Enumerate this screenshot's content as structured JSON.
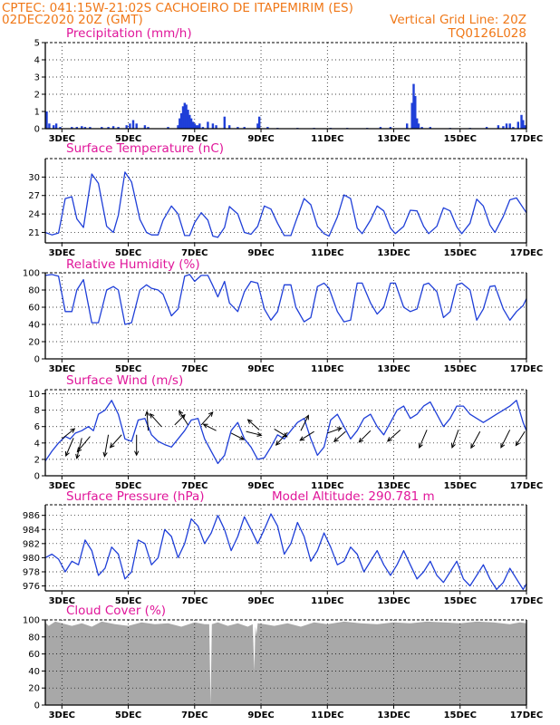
{
  "header": {
    "line1_left": "CPTEC:   041:15W-21:02S   CACHOEIRO DE ITAPEMIRIM (ES)",
    "line2_left": "02DEC2020 20Z (GMT)",
    "line2_right": "Vertical Grid Line: 20Z",
    "line3_right": "TQ0126L028"
  },
  "colors": {
    "header": "#f07818",
    "panel_title": "#e0169a",
    "series": "#1f3fd8",
    "cloud": "#a8a8a8",
    "wind_arrow": "#000000"
  },
  "x_axis": {
    "tick_labels": [
      "3DEC",
      "5DEC",
      "7DEC",
      "9DEC",
      "11DEC",
      "13DEC",
      "15DEC",
      "17DEC"
    ],
    "tick_days": [
      3,
      5,
      7,
      9,
      11,
      13,
      15,
      17
    ],
    "start_day": 2.5,
    "end_day": 17.0
  },
  "chart_data": [
    {
      "type": "bar",
      "title": "Precipitation (mm/h)",
      "ylim": [
        0,
        5
      ],
      "yticks": [
        0,
        1,
        2,
        3,
        4,
        5
      ],
      "x": [
        2.54,
        2.62,
        2.75,
        2.83,
        2.95,
        3.3,
        3.45,
        3.6,
        3.7,
        3.85,
        4.2,
        4.4,
        4.55,
        4.7,
        4.95,
        5.05,
        5.15,
        5.25,
        5.5,
        5.6,
        6.2,
        6.5,
        6.55,
        6.6,
        6.65,
        6.7,
        6.75,
        6.8,
        6.85,
        6.9,
        6.95,
        7.0,
        7.05,
        7.1,
        7.15,
        7.25,
        7.4,
        7.55,
        7.65,
        7.9,
        8.05,
        8.3,
        8.5,
        8.9,
        8.95,
        9.2,
        9.5,
        10.1,
        10.6,
        11.1,
        11.6,
        12.2,
        12.6,
        12.9,
        13.4,
        13.55,
        13.6,
        13.65,
        13.7,
        13.75,
        13.85,
        14.1,
        14.7,
        15.3,
        15.8,
        16.15,
        16.3,
        16.4,
        16.5,
        16.6,
        16.75,
        16.85,
        16.9,
        16.95
      ],
      "values": [
        1.0,
        0.3,
        0.2,
        0.3,
        0.1,
        0.1,
        0.1,
        0.15,
        0.1,
        0.1,
        0.1,
        0.1,
        0.15,
        0.1,
        0.2,
        0.3,
        0.5,
        0.3,
        0.2,
        0.1,
        0.1,
        0.2,
        0.6,
        0.9,
        1.3,
        1.5,
        1.4,
        1.1,
        0.8,
        0.6,
        0.4,
        0.3,
        0.2,
        0.2,
        0.3,
        0.1,
        0.4,
        0.3,
        0.2,
        0.7,
        0.2,
        0.1,
        0.1,
        0.3,
        0.7,
        0.1,
        0.05,
        0.05,
        0.05,
        0.05,
        0.05,
        0.05,
        0.1,
        0.1,
        0.3,
        1.5,
        2.6,
        1.9,
        0.6,
        0.3,
        0.1,
        0.1,
        0.05,
        0.05,
        0.1,
        0.2,
        0.15,
        0.3,
        0.3,
        0.1,
        0.4,
        0.8,
        0.5,
        0.2
      ]
    },
    {
      "type": "line",
      "title": "Surface Temperature (nC)",
      "ylim": [
        19.3,
        33
      ],
      "yticks": [
        21,
        24,
        27,
        30
      ],
      "x": [
        2.5,
        2.7,
        2.9,
        3.1,
        3.3,
        3.45,
        3.65,
        3.9,
        4.1,
        4.35,
        4.55,
        4.7,
        4.9,
        5.1,
        5.35,
        5.55,
        5.7,
        5.9,
        6.05,
        6.3,
        6.5,
        6.7,
        6.85,
        7.0,
        7.2,
        7.4,
        7.55,
        7.7,
        7.9,
        8.05,
        8.3,
        8.5,
        8.7,
        8.9,
        9.1,
        9.3,
        9.5,
        9.7,
        9.9,
        10.05,
        10.3,
        10.5,
        10.7,
        10.9,
        11.05,
        11.3,
        11.5,
        11.7,
        11.9,
        12.05,
        12.3,
        12.5,
        12.7,
        12.9,
        13.05,
        13.3,
        13.5,
        13.7,
        13.9,
        14.05,
        14.3,
        14.5,
        14.7,
        14.9,
        15.05,
        15.3,
        15.5,
        15.7,
        15.9,
        16.05,
        16.3,
        16.5,
        16.7,
        16.9,
        17.0
      ],
      "values": [
        21,
        20.6,
        20.9,
        26.5,
        26.8,
        23.2,
        21.8,
        30.5,
        29,
        22,
        21,
        23.8,
        30.8,
        29.2,
        23.1,
        21,
        20.6,
        20.6,
        23,
        25.3,
        24,
        20.5,
        20.5,
        22.6,
        24.2,
        23,
        20.4,
        20.2,
        21.8,
        25.2,
        24,
        21,
        20.7,
        22,
        25.3,
        24.8,
        22.5,
        20.5,
        20.5,
        22.8,
        26.5,
        25.5,
        22,
        20.8,
        20.4,
        23.5,
        27.1,
        26.5,
        21.7,
        20.8,
        23,
        25.3,
        24.5,
        21.7,
        20.8,
        22,
        24.6,
        24.5,
        22,
        20.8,
        22,
        25,
        24.5,
        21.9,
        20.8,
        22.5,
        26.4,
        25.3,
        22.2,
        21,
        23.6,
        26.3,
        26.6,
        25,
        24.2
      ]
    },
    {
      "type": "line",
      "title": "Relative Humidity (%)",
      "ylim": [
        0,
        100
      ],
      "yticks": [
        0,
        20,
        40,
        60,
        80,
        100
      ],
      "x": [
        2.5,
        2.7,
        2.9,
        3.1,
        3.3,
        3.45,
        3.65,
        3.9,
        4.1,
        4.35,
        4.55,
        4.7,
        4.9,
        5.1,
        5.35,
        5.55,
        5.7,
        5.9,
        6.05,
        6.3,
        6.5,
        6.7,
        6.85,
        7.0,
        7.2,
        7.4,
        7.55,
        7.7,
        7.9,
        8.05,
        8.3,
        8.5,
        8.7,
        8.9,
        9.1,
        9.3,
        9.5,
        9.7,
        9.9,
        10.05,
        10.3,
        10.5,
        10.7,
        10.9,
        11.05,
        11.3,
        11.5,
        11.7,
        11.9,
        12.05,
        12.3,
        12.5,
        12.7,
        12.9,
        13.05,
        13.3,
        13.5,
        13.7,
        13.9,
        14.05,
        14.3,
        14.5,
        14.7,
        14.9,
        15.05,
        15.3,
        15.5,
        15.7,
        15.9,
        16.05,
        16.3,
        16.5,
        16.7,
        16.9,
        17.0
      ],
      "values": [
        97,
        98,
        96,
        55,
        55,
        80,
        92,
        42,
        42,
        80,
        84,
        80,
        40,
        42,
        80,
        86,
        82,
        80,
        75,
        50,
        58,
        96,
        98,
        90,
        97,
        97,
        85,
        72,
        90,
        65,
        55,
        78,
        90,
        88,
        58,
        45,
        55,
        86,
        86,
        60,
        43,
        48,
        84,
        88,
        82,
        55,
        43,
        45,
        88,
        88,
        65,
        52,
        60,
        88,
        88,
        60,
        55,
        58,
        86,
        88,
        78,
        48,
        55,
        86,
        88,
        80,
        45,
        58,
        84,
        85,
        58,
        45,
        55,
        62,
        70
      ]
    },
    {
      "type": "line",
      "title": "Surface Wind (m/s)",
      "ylim": [
        0,
        10.5
      ],
      "yticks": [
        0,
        2,
        4,
        6,
        8,
        10
      ],
      "x": [
        2.5,
        2.7,
        2.9,
        3.1,
        3.25,
        3.4,
        3.6,
        3.8,
        3.95,
        4.1,
        4.3,
        4.5,
        4.7,
        4.9,
        5.1,
        5.3,
        5.5,
        5.7,
        5.9,
        6.1,
        6.3,
        6.5,
        6.7,
        6.9,
        7.1,
        7.3,
        7.5,
        7.7,
        7.9,
        8.1,
        8.3,
        8.5,
        8.7,
        8.9,
        9.1,
        9.3,
        9.5,
        9.7,
        9.9,
        10.1,
        10.3,
        10.5,
        10.7,
        10.9,
        11.1,
        11.3,
        11.5,
        11.7,
        11.9,
        12.1,
        12.3,
        12.5,
        12.7,
        12.9,
        13.1,
        13.3,
        13.5,
        13.7,
        13.9,
        14.1,
        14.3,
        14.5,
        14.7,
        14.9,
        15.1,
        15.3,
        15.5,
        15.7,
        15.9,
        16.1,
        16.3,
        16.5,
        16.7,
        16.9,
        17.0
      ],
      "values": [
        1.8,
        3.0,
        4.0,
        4.8,
        4.5,
        5.2,
        5.5,
        6.0,
        5.5,
        7.5,
        8.0,
        9.2,
        7.5,
        4.5,
        4.2,
        6.8,
        7.0,
        5.0,
        4.2,
        3.8,
        3.5,
        4.5,
        5.5,
        6.8,
        7.0,
        4.5,
        3.0,
        1.5,
        2.5,
        5.5,
        6.5,
        4.5,
        3.5,
        2.0,
        2.2,
        3.5,
        5.0,
        4.5,
        5.5,
        6.5,
        7.0,
        4.5,
        2.5,
        3.5,
        6.8,
        7.5,
        6.0,
        4.5,
        5.5,
        7.0,
        7.5,
        6.0,
        5.0,
        6.5,
        8.0,
        8.5,
        7.0,
        7.5,
        8.5,
        9.0,
        7.5,
        6.0,
        7.0,
        8.5,
        8.5,
        7.5,
        7.0,
        6.5,
        7.0,
        7.5,
        8.0,
        8.5,
        9.2,
        6.5,
        5.5
      ],
      "wind_arrows": [
        {
          "x": 3.0,
          "y": 4.5,
          "u": 0.5,
          "v": 0.4
        },
        {
          "x": 3.35,
          "y": 4.6,
          "u": -0.3,
          "v": -0.7
        },
        {
          "x": 3.6,
          "y": 4.6,
          "u": -0.2,
          "v": -0.8
        },
        {
          "x": 3.85,
          "y": 4.8,
          "u": -0.5,
          "v": -0.6
        },
        {
          "x": 4.4,
          "y": 5.0,
          "u": -0.15,
          "v": -0.85
        },
        {
          "x": 4.8,
          "y": 5.0,
          "u": -0.45,
          "v": -0.5
        },
        {
          "x": 5.25,
          "y": 5.0,
          "u": 0.0,
          "v": -0.8
        },
        {
          "x": 5.6,
          "y": 5.5,
          "u": -0.05,
          "v": 0.75
        },
        {
          "x": 6.0,
          "y": 6.0,
          "u": -0.45,
          "v": 0.5
        },
        {
          "x": 6.4,
          "y": 6.2,
          "u": 0.4,
          "v": 0.4
        },
        {
          "x": 6.8,
          "y": 6.2,
          "u": -0.35,
          "v": 0.55
        },
        {
          "x": 7.2,
          "y": 6.2,
          "u": 0.45,
          "v": 0.5
        },
        {
          "x": 7.65,
          "y": 5.5,
          "u": -0.5,
          "v": 0.25
        },
        {
          "x": 8.1,
          "y": 5.2,
          "u": 0.5,
          "v": -0.25
        },
        {
          "x": 8.55,
          "y": 5.4,
          "u": 0.6,
          "v": -0.15
        },
        {
          "x": 8.95,
          "y": 5.6,
          "u": -0.45,
          "v": 0.4
        },
        {
          "x": 9.4,
          "y": 5.7,
          "u": 0.5,
          "v": -0.3
        },
        {
          "x": 9.8,
          "y": 5.3,
          "u": -0.45,
          "v": -0.5
        },
        {
          "x": 10.2,
          "y": 5.5,
          "u": 0.3,
          "v": 0.6
        },
        {
          "x": 10.6,
          "y": 5.4,
          "u": -0.55,
          "v": -0.35
        },
        {
          "x": 11.0,
          "y": 5.2,
          "u": 0.55,
          "v": 0.2
        },
        {
          "x": 11.55,
          "y": 5.4,
          "u": -0.45,
          "v": -0.4
        },
        {
          "x": 12.3,
          "y": 5.5,
          "u": -0.45,
          "v": -0.45
        },
        {
          "x": 13.2,
          "y": 5.6,
          "u": -0.5,
          "v": -0.45
        },
        {
          "x": 14.0,
          "y": 5.6,
          "u": -0.3,
          "v": -0.7
        },
        {
          "x": 14.95,
          "y": 5.6,
          "u": -0.25,
          "v": -0.7
        },
        {
          "x": 15.6,
          "y": 5.4,
          "u": -0.35,
          "v": -0.65
        },
        {
          "x": 16.5,
          "y": 5.6,
          "u": -0.35,
          "v": -0.7
        },
        {
          "x": 16.95,
          "y": 5.4,
          "u": -0.35,
          "v": -0.55
        }
      ]
    },
    {
      "type": "line",
      "title": "Surface Pressure (hPa)",
      "annotation": "Model Altitude: 290.781 m",
      "ylim": [
        975.3,
        987.5
      ],
      "yticks": [
        976,
        978,
        980,
        982,
        984,
        986
      ],
      "x": [
        2.5,
        2.7,
        2.9,
        3.1,
        3.3,
        3.5,
        3.7,
        3.9,
        4.1,
        4.3,
        4.5,
        4.7,
        4.9,
        5.1,
        5.3,
        5.5,
        5.7,
        5.9,
        6.1,
        6.3,
        6.5,
        6.7,
        6.9,
        7.1,
        7.3,
        7.5,
        7.7,
        7.9,
        8.1,
        8.3,
        8.5,
        8.7,
        8.9,
        9.1,
        9.3,
        9.5,
        9.7,
        9.9,
        10.1,
        10.3,
        10.5,
        10.7,
        10.9,
        11.1,
        11.3,
        11.5,
        11.7,
        11.9,
        12.1,
        12.3,
        12.5,
        12.7,
        12.9,
        13.1,
        13.3,
        13.5,
        13.7,
        13.9,
        14.1,
        14.3,
        14.5,
        14.7,
        14.9,
        15.1,
        15.3,
        15.5,
        15.7,
        15.9,
        16.1,
        16.3,
        16.5,
        16.7,
        16.9,
        17.0
      ],
      "values": [
        980,
        980.5,
        979.8,
        978,
        979.5,
        979,
        982.5,
        981,
        977.5,
        978.5,
        981.5,
        980.5,
        977,
        978,
        982.5,
        982,
        979,
        980,
        984,
        983,
        980,
        982,
        985.5,
        984.5,
        982,
        983.5,
        986,
        984,
        981,
        983,
        985.8,
        984,
        982,
        984,
        986.2,
        984.5,
        980.5,
        982,
        985,
        983,
        979.5,
        981,
        983.5,
        981.5,
        979,
        979.5,
        981.5,
        980.5,
        978,
        979.5,
        981,
        979,
        977.5,
        979,
        981,
        979,
        977,
        978,
        979.5,
        977.5,
        976.5,
        978,
        979.5,
        977,
        976,
        977.5,
        979,
        977,
        975.5,
        976.5,
        978.5,
        977,
        975.5,
        976.3
      ]
    },
    {
      "type": "area",
      "title": "Cloud Cover (%)",
      "ylim": [
        0,
        100
      ],
      "yticks": [
        0,
        20,
        40,
        60,
        80,
        100
      ],
      "x": [
        2.5,
        2.6,
        2.8,
        3.0,
        3.3,
        3.6,
        3.9,
        4.2,
        4.6,
        5.0,
        5.4,
        5.8,
        6.2,
        6.6,
        7.0,
        7.3,
        7.44,
        7.48,
        7.52,
        7.7,
        8.0,
        8.3,
        8.6,
        8.75,
        8.78,
        8.8,
        8.83,
        8.86,
        8.9,
        9.1,
        9.4,
        9.8,
        10.2,
        10.6,
        11.0,
        11.5,
        12.0,
        12.5,
        13.0,
        13.5,
        14.0,
        14.5,
        15.0,
        15.5,
        16.0,
        16.5,
        16.8,
        17.0
      ],
      "values": [
        97,
        93,
        98,
        96,
        93,
        96,
        92,
        98,
        95,
        93,
        97,
        95,
        96,
        92,
        97,
        95,
        95,
        0,
        95,
        97,
        93,
        96,
        92,
        95,
        60,
        40,
        92,
        82,
        96,
        95,
        93,
        96,
        92,
        97,
        95,
        98,
        96,
        95,
        97,
        96,
        98,
        97,
        96,
        98,
        97,
        95,
        97,
        96
      ]
    }
  ]
}
